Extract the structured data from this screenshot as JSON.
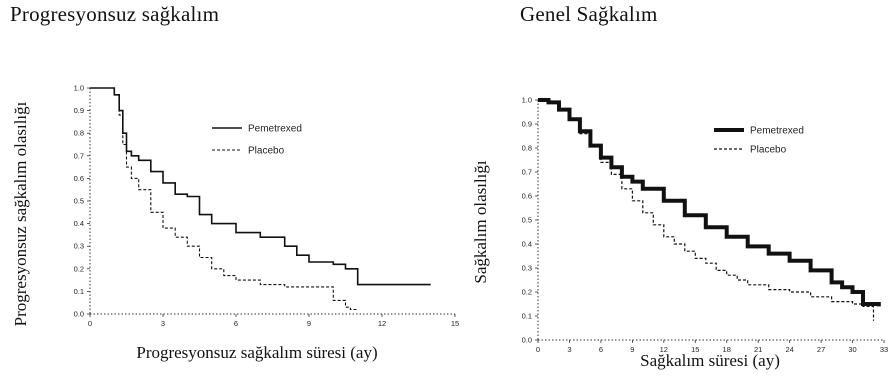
{
  "chart_data": [
    {
      "type": "line",
      "title": "Progresyonsuz sağkalım",
      "xlabel": "Progresyonsuz sağkalım süresi (ay)",
      "ylabel": "Progresyonsuz sağkalım olasılığı",
      "xlim": [
        0,
        15
      ],
      "ylim": [
        0,
        1.0
      ],
      "x_ticks": [
        "0",
        "3",
        "6",
        "9",
        "12",
        "15"
      ],
      "y_ticks": [
        "1.0",
        "0.9",
        "0.8",
        "0.7",
        "0.6",
        "0.5",
        "0.4",
        "0.3",
        "0.2",
        "0.1",
        "0.0"
      ],
      "legend_position": "top-right",
      "series": [
        {
          "name": "Pemetrexed",
          "style": "solid",
          "x": [
            0,
            0.5,
            1.0,
            1.2,
            1.35,
            1.5,
            1.7,
            2.0,
            2.5,
            3.0,
            3.5,
            4.0,
            4.5,
            5.0,
            6.0,
            7.0,
            8.0,
            8.5,
            9.0,
            10.0,
            10.5,
            11.0,
            12.0,
            13.0,
            14.0
          ],
          "y": [
            1.0,
            1.0,
            0.97,
            0.9,
            0.8,
            0.72,
            0.7,
            0.68,
            0.63,
            0.58,
            0.53,
            0.52,
            0.44,
            0.4,
            0.36,
            0.34,
            0.3,
            0.26,
            0.23,
            0.22,
            0.2,
            0.13,
            0.13,
            0.13,
            0.13
          ]
        },
        {
          "name": "Placebo",
          "style": "dashed",
          "x": [
            0,
            0.5,
            1.0,
            1.2,
            1.35,
            1.5,
            1.7,
            2.0,
            2.5,
            3.0,
            3.5,
            4.0,
            4.5,
            5.0,
            5.5,
            6.0,
            7.0,
            8.0,
            9.0,
            10.0,
            10.5,
            10.7,
            11.0
          ],
          "y": [
            1.0,
            1.0,
            0.97,
            0.88,
            0.75,
            0.65,
            0.6,
            0.55,
            0.45,
            0.38,
            0.34,
            0.3,
            0.25,
            0.2,
            0.17,
            0.15,
            0.13,
            0.12,
            0.12,
            0.06,
            0.03,
            0.02,
            0.02
          ]
        }
      ]
    },
    {
      "type": "line",
      "title": "Genel Sağkalım",
      "xlabel": "Sağkalım süresi (ay)",
      "ylabel": "Sağkalım olasılığı",
      "xlim": [
        0,
        33
      ],
      "ylim": [
        0,
        1.0
      ],
      "x_ticks": [
        "0",
        "3",
        "6",
        "9",
        "12",
        "15",
        "18",
        "21",
        "24",
        "27",
        "30",
        "33"
      ],
      "y_ticks": [
        "1.0",
        "0.9",
        "0.8",
        "0.7",
        "0.6",
        "0.5",
        "0.4",
        "0.3",
        "0.2",
        "0.1",
        "0.0"
      ],
      "legend_position": "top-right",
      "series": [
        {
          "name": "Pemetrexed",
          "style": "solid",
          "x": [
            0,
            1,
            2,
            3,
            4,
            5,
            6,
            7,
            8,
            9,
            10,
            12,
            14,
            16,
            18,
            20,
            22,
            24,
            26,
            28,
            29,
            30,
            31,
            32.5
          ],
          "y": [
            1.0,
            0.99,
            0.96,
            0.92,
            0.87,
            0.81,
            0.76,
            0.72,
            0.68,
            0.66,
            0.63,
            0.58,
            0.52,
            0.47,
            0.43,
            0.39,
            0.36,
            0.33,
            0.29,
            0.24,
            0.22,
            0.2,
            0.15,
            0.14
          ]
        },
        {
          "name": "Placebo",
          "style": "dashed",
          "x": [
            0,
            1,
            2,
            3,
            4,
            5,
            6,
            7,
            8,
            9,
            10,
            11,
            12,
            13,
            14,
            15,
            16,
            17,
            18,
            19,
            20,
            22,
            24,
            26,
            28,
            30,
            31,
            32
          ],
          "y": [
            1.0,
            0.99,
            0.96,
            0.92,
            0.86,
            0.81,
            0.74,
            0.69,
            0.63,
            0.58,
            0.53,
            0.48,
            0.43,
            0.4,
            0.37,
            0.34,
            0.32,
            0.29,
            0.27,
            0.25,
            0.23,
            0.21,
            0.2,
            0.18,
            0.16,
            0.15,
            0.14,
            0.08
          ]
        }
      ]
    }
  ]
}
